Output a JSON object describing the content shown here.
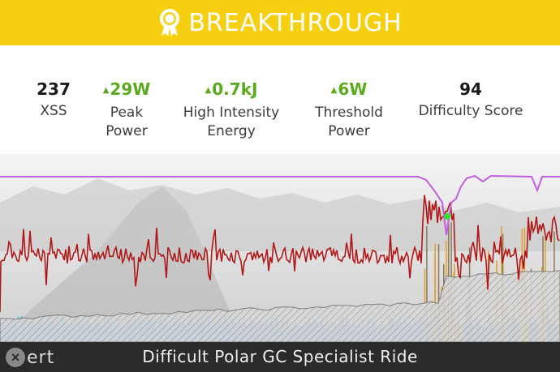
{
  "banner": {
    "title": "BREAKTHROUGH",
    "icon": "award-ribbon-icon",
    "color": "#f5cf10"
  },
  "stats": [
    {
      "value": "237",
      "label_line1": "XSS",
      "label_line2": "",
      "trend": "none"
    },
    {
      "value": "29W",
      "label_line1": "Peak",
      "label_line2": "Power",
      "trend": "up"
    },
    {
      "value": "0.7kJ",
      "label_line1": "High Intensity",
      "label_line2": "Energy",
      "trend": "up"
    },
    {
      "value": "6W",
      "label_line1": "Threshold",
      "label_line2": "Power",
      "trend": "up"
    },
    {
      "value": "94",
      "label_line1": "Difficulty Score",
      "label_line2": "",
      "trend": "none"
    }
  ],
  "chart": {
    "series_colors": {
      "power": "#b01818",
      "mpa": "#c060e0",
      "bars": "#4a8fe0",
      "breakthrough_point": "#33dd33"
    }
  },
  "footer": {
    "logo_text": "ert",
    "ride_title": "Difficult Polar GC Specialist Ride"
  }
}
